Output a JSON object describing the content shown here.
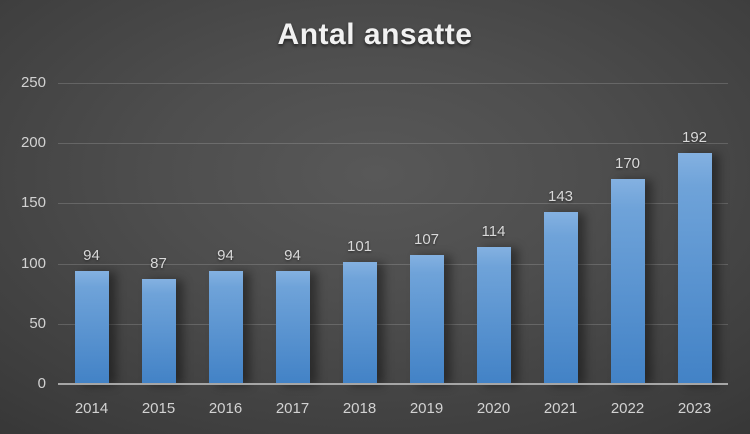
{
  "chart_data": {
    "type": "bar",
    "title": "Antal ansatte",
    "categories": [
      "2014",
      "2015",
      "2016",
      "2017",
      "2018",
      "2019",
      "2020",
      "2021",
      "2022",
      "2023"
    ],
    "values": [
      94,
      87,
      94,
      94,
      101,
      107,
      114,
      143,
      170,
      192
    ],
    "xlabel": "",
    "ylabel": "",
    "ylim": [
      0,
      250
    ],
    "ytick_step": 50,
    "ytick_labels": [
      "0",
      "50",
      "100",
      "150",
      "200",
      "250"
    ],
    "grid": true,
    "legend": "none",
    "data_labels": true
  },
  "colors": {
    "bar_top": "#84b1e1",
    "bar_mid": "#6fa3d9",
    "bar_bottom": "#4282c6",
    "background_center": "#585858",
    "background_edge": "#252525",
    "gridline": "rgba(255,255,255,0.16)",
    "axis_line": "#a6a6a6",
    "title_text": "#f1f1f1",
    "label_text": "#d2d2d2"
  }
}
